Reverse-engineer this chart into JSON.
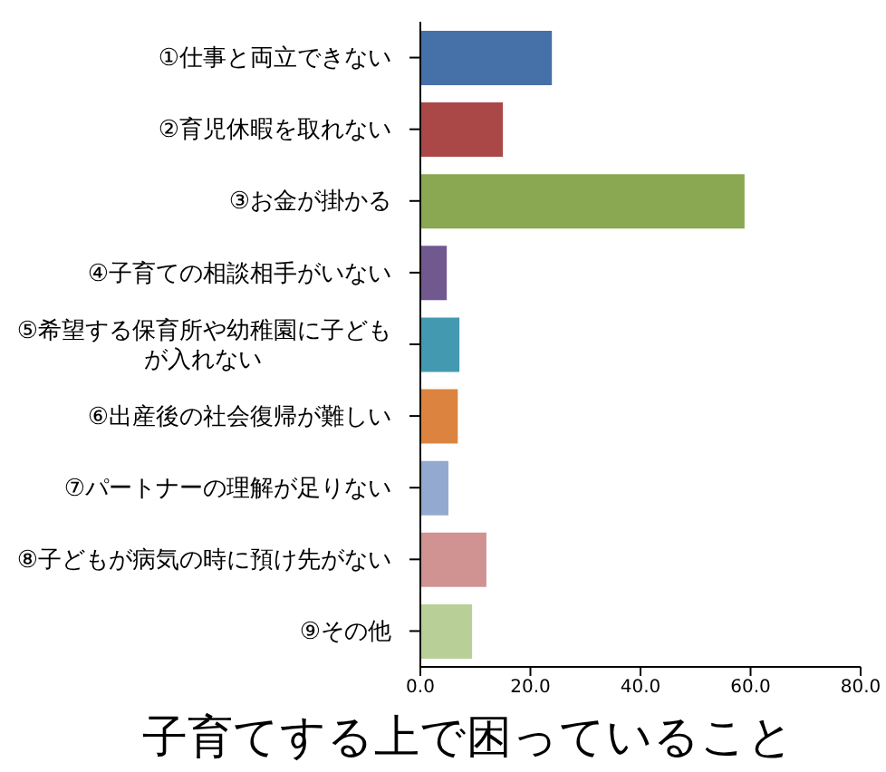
{
  "chart_data": {
    "type": "bar",
    "orientation": "horizontal",
    "title": "子育てする上で困っていること",
    "categories": [
      "①仕事と両立できない",
      "②育児休暇を取れない",
      "③お金が掛かる",
      "④子育ての相談相手がいない",
      "⑤希望する保育所や幼稚園に子どもが入れない",
      "⑥出産後の社会復帰が難しい",
      "⑦パートナーの理解が足りない",
      "⑧子どもが病気の時に預け先がない",
      "⑨その他"
    ],
    "values": [
      23.9,
      15.0,
      58.9,
      4.8,
      7.1,
      6.8,
      5.1,
      12.0,
      9.4
    ],
    "colors": [
      "#4670a8",
      "#a94847",
      "#8aa751",
      "#71598f",
      "#4399b0",
      "#dc843f",
      "#94a9cf",
      "#d09392",
      "#b9cf98"
    ],
    "xlim": [
      0,
      80
    ],
    "xticks": [
      {
        "value": 0,
        "label": "0.0"
      },
      {
        "value": 20,
        "label": "20.0"
      },
      {
        "value": 40,
        "label": "40.0"
      },
      {
        "value": 60,
        "label": "60.0"
      },
      {
        "value": 80,
        "label": "80.0"
      }
    ],
    "grid": false,
    "legend": false
  }
}
